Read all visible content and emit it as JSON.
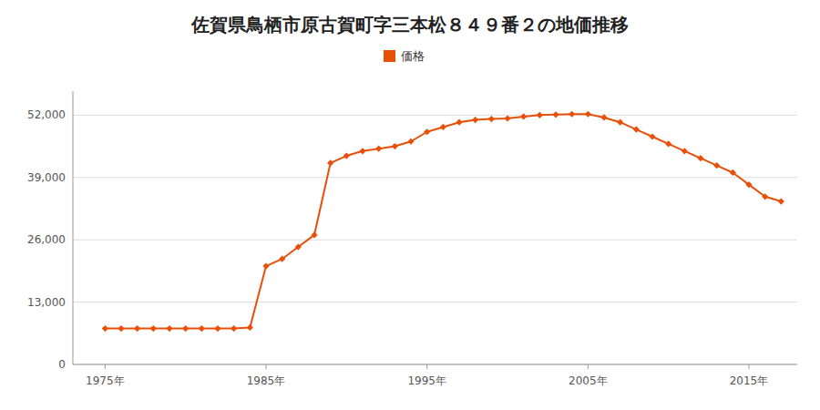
{
  "chart_data": {
    "type": "line",
    "title": "佐賀県鳥栖市原古賀町字三本松８４９番２の地価推移",
    "x": [
      1975,
      1976,
      1977,
      1978,
      1979,
      1980,
      1981,
      1982,
      1983,
      1984,
      1985,
      1986,
      1987,
      1988,
      1989,
      1990,
      1991,
      1992,
      1993,
      1994,
      1995,
      1996,
      1997,
      1998,
      1999,
      2000,
      2001,
      2002,
      2003,
      2004,
      2005,
      2006,
      2007,
      2008,
      2009,
      2010,
      2011,
      2012,
      2013,
      2014,
      2015,
      2016,
      2017
    ],
    "series": [
      {
        "name": "価格",
        "color": "#e8500a",
        "marker": "diamond",
        "values": [
          7500,
          7500,
          7500,
          7500,
          7500,
          7500,
          7500,
          7500,
          7500,
          7700,
          20500,
          22000,
          24500,
          27000,
          42000,
          43500,
          44500,
          45000,
          45500,
          46500,
          48500,
          49500,
          50500,
          51000,
          51200,
          51300,
          51700,
          52000,
          52100,
          52200,
          52200,
          51500,
          50500,
          49000,
          47500,
          46000,
          44500,
          43000,
          41500,
          40000,
          37500,
          35000,
          34000
        ]
      }
    ],
    "xlim": [
      1973,
      2018
    ],
    "xticks": [
      {
        "value": 1975,
        "label": "1975年"
      },
      {
        "value": 1985,
        "label": "1985年"
      },
      {
        "value": 1995,
        "label": "1995年"
      },
      {
        "value": 2005,
        "label": "2005年"
      },
      {
        "value": 2015,
        "label": "2015年"
      }
    ],
    "ylim": [
      0,
      57000
    ],
    "yticks": [
      0,
      {
        "value": 13000,
        "label": "13,000"
      },
      {
        "value": 26000,
        "label": "26,000"
      },
      {
        "value": 39000,
        "label": "39,000"
      },
      {
        "value": 52000,
        "label": "52,000"
      }
    ],
    "grid": true,
    "legend": "top"
  }
}
